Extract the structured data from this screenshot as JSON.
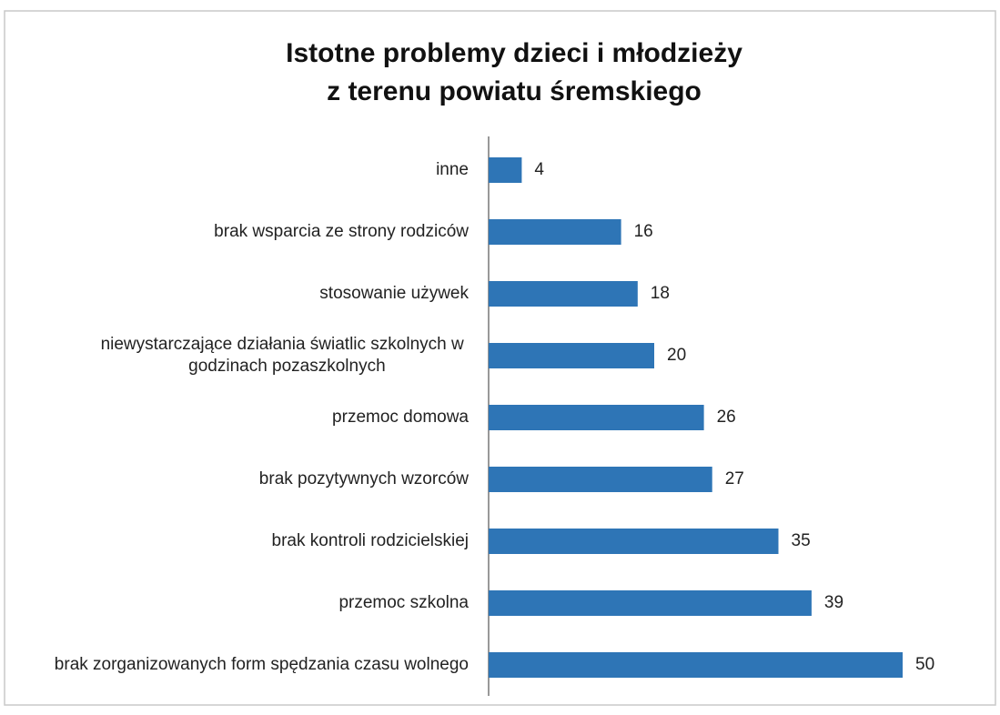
{
  "chart_data": {
    "type": "bar",
    "orientation": "horizontal",
    "title": [
      "Istotne problemy dzieci i młodzieży",
      "z terenu powiatu śremskiego"
    ],
    "categories": [
      "inne",
      "brak wsparcia ze strony rodziców",
      "stosowanie używek",
      "niewystarczające działania światlic szkolnych w godzinach pozaszkolnych",
      "przemoc domowa",
      "brak pozytywnych wzorców",
      "brak kontroli rodzicielskiej",
      "przemoc szkolna",
      "brak zorganizowanych form spędzania czasu wolnego"
    ],
    "values": [
      4,
      16,
      18,
      20,
      26,
      27,
      35,
      39,
      50
    ],
    "color": "#2e75b6"
  }
}
